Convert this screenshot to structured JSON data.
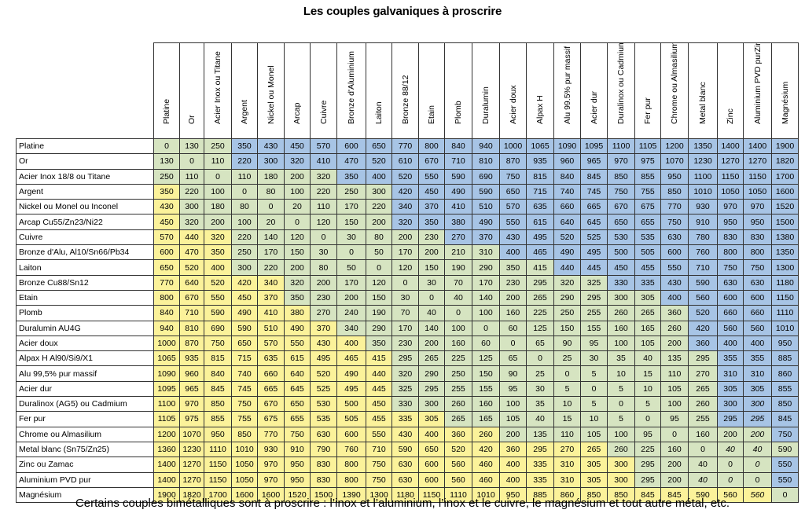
{
  "title": "Les couples galvaniques à proscrire",
  "caption": "Certains couples bimétalliques sont à proscrire : l’inox et l’aluminium, l’inox et le cuivre, le magnésium et tout autre métal, etc.",
  "colors": {
    "green": "#d6e4c1",
    "yellow": "#fbf29a",
    "blue": "#a7c4e5"
  },
  "columns": [
    "Platine",
    "Or",
    "Acier Inox ou Titane",
    "Argent",
    "Nickel ou Monel",
    "Arcap",
    "Cuivre",
    "Bronze d'Aluminium",
    "Laiton",
    "Bronze 88/12",
    "Etain",
    "Plomb",
    "Duralumin",
    "Acier doux",
    "Alpax H",
    "Alu 99.5% pur massif",
    "Acier dur",
    "Duralinox ou Cadmium",
    "Fer pur",
    "Chrome ou Almasilium",
    "Metal blanc",
    "Zinc",
    "Aluminium PVD purZinc",
    "Magnésium"
  ],
  "rows": [
    {
      "label": "Platine",
      "values": [
        "0",
        "130",
        "250",
        "350",
        "430",
        "450",
        "570",
        "600",
        "650",
        "770",
        "800",
        "840",
        "940",
        "1000",
        "1065",
        "1090",
        "1095",
        "1100",
        "1105",
        "1200",
        "1350",
        "1400",
        "1400",
        "1900"
      ]
    },
    {
      "label": "Or",
      "values": [
        "130",
        "0",
        "110",
        "220",
        "300",
        "320",
        "410",
        "470",
        "520",
        "610",
        "670",
        "710",
        "810",
        "870",
        "935",
        "960",
        "965",
        "970",
        "975",
        "1070",
        "1230",
        "1270",
        "1270",
        "1820"
      ]
    },
    {
      "label": "Acier Inox 18/8 ou Titane",
      "values": [
        "250",
        "110",
        "0",
        "110",
        "180",
        "200",
        "320",
        "350",
        "400",
        "520",
        "550",
        "590",
        "690",
        "750",
        "815",
        "840",
        "845",
        "850",
        "855",
        "950",
        "1100",
        "1150",
        "1150",
        "1700"
      ]
    },
    {
      "label": "Argent",
      "values": [
        "350",
        "220",
        "100",
        "0",
        "80",
        "100",
        "220",
        "250",
        "300",
        "420",
        "450",
        "490",
        "590",
        "650",
        "715",
        "740",
        "745",
        "750",
        "755",
        "850",
        "1010",
        "1050",
        "1050",
        "1600"
      ]
    },
    {
      "label": "Nickel ou Monel ou Inconel",
      "values": [
        "430",
        "300",
        "180",
        "80",
        "0",
        "20",
        "110",
        "170",
        "220",
        "340",
        "370",
        "410",
        "510",
        "570",
        "635",
        "660",
        "665",
        "670",
        "675",
        "770",
        "930",
        "970",
        "970",
        "1520"
      ]
    },
    {
      "label": "Arcap Cu55/Zn23/Ni22",
      "values": [
        "450",
        "320",
        "200",
        "100",
        "20",
        "0",
        "120",
        "150",
        "200",
        "320",
        "350",
        "380",
        "490",
        "550",
        "615",
        "640",
        "645",
        "650",
        "655",
        "750",
        "910",
        "950",
        "950",
        "1500"
      ]
    },
    {
      "label": "Cuivre",
      "values": [
        "570",
        "440",
        "320",
        "220",
        "140",
        "120",
        "0",
        "30",
        "80",
        "200",
        "230",
        "270",
        "370",
        "430",
        "495",
        "520",
        "525",
        "530",
        "535",
        "630",
        "780",
        "830",
        "830",
        "1380"
      ]
    },
    {
      "label": "Bronze d'Alu, Al10/Sn66/Pb34",
      "values": [
        "600",
        "470",
        "350",
        "250",
        "170",
        "150",
        "30",
        "0",
        "50",
        "170",
        "200",
        "210",
        "310",
        "400",
        "465",
        "490",
        "495",
        "500",
        "505",
        "600",
        "760",
        "800",
        "800",
        "1350"
      ]
    },
    {
      "label": "Laiton",
      "values": [
        "650",
        "520",
        "400",
        "300",
        "220",
        "200",
        "80",
        "50",
        "0",
        "120",
        "150",
        "190",
        "290",
        "350",
        "415",
        "440",
        "445",
        "450",
        "455",
        "550",
        "710",
        "750",
        "750",
        "1300"
      ]
    },
    {
      "label": "Bronze Cu88/Sn12",
      "values": [
        "770",
        "640",
        "520",
        "420",
        "340",
        "320",
        "200",
        "170",
        "120",
        "0",
        "30",
        "70",
        "170",
        "230",
        "295",
        "320",
        "325",
        "330",
        "335",
        "430",
        "590",
        "630",
        "630",
        "1180"
      ]
    },
    {
      "label": "Etain",
      "values": [
        "800",
        "670",
        "550",
        "450",
        "370",
        "350",
        "230",
        "200",
        "150",
        "30",
        "0",
        "40",
        "140",
        "200",
        "265",
        "290",
        "295",
        "300",
        "305",
        "400",
        "560",
        "600",
        "600",
        "1150"
      ]
    },
    {
      "label": "Plomb",
      "values": [
        "840",
        "710",
        "590",
        "490",
        "410",
        "380",
        "270",
        "240",
        "190",
        "70",
        "40",
        "0",
        "100",
        "160",
        "225",
        "250",
        "255",
        "260",
        "265",
        "360",
        "520",
        "660",
        "660",
        "1110"
      ]
    },
    {
      "label": "Duralumin AU4G",
      "values": [
        "940",
        "810",
        "690",
        "590",
        "510",
        "490",
        "370",
        "340",
        "290",
        "170",
        "140",
        "100",
        "0",
        "60",
        "125",
        "150",
        "155",
        "160",
        "165",
        "260",
        "420",
        "560",
        "560",
        "1010"
      ]
    },
    {
      "label": "Acier doux",
      "values": [
        "1000",
        "870",
        "750",
        "650",
        "570",
        "550",
        "430",
        "400",
        "350",
        "230",
        "200",
        "160",
        "60",
        "0",
        "65",
        "90",
        "95",
        "100",
        "105",
        "200",
        "360",
        "400",
        "400",
        "950"
      ]
    },
    {
      "label": "Alpax H Al90/Si9/X1",
      "values": [
        "1065",
        "935",
        "815",
        "715",
        "635",
        "615",
        "495",
        "465",
        "415",
        "295",
        "265",
        "225",
        "125",
        "65",
        "0",
        "25",
        "30",
        "35",
        "40",
        "135",
        "295",
        "355",
        "355",
        "885"
      ]
    },
    {
      "label": "Alu 99,5% pur massif",
      "values": [
        "1090",
        "960",
        "840",
        "740",
        "660",
        "640",
        "520",
        "490",
        "440",
        "320",
        "290",
        "250",
        "150",
        "90",
        "25",
        "0",
        "5",
        "10",
        "15",
        "110",
        "270",
        "310",
        "310",
        "860"
      ]
    },
    {
      "label": "Acier dur",
      "values": [
        "1095",
        "965",
        "845",
        "745",
        "665",
        "645",
        "525",
        "495",
        "445",
        "325",
        "295",
        "255",
        "155",
        "95",
        "30",
        "5",
        "0",
        "5",
        "10",
        "105",
        "265",
        "305",
        "305",
        "855"
      ]
    },
    {
      "label": "Duralinox (AG5) ou Cadmium",
      "values": [
        "1100",
        "970",
        "850",
        "750",
        "670",
        "650",
        "530",
        "500",
        "450",
        "330",
        "300",
        "260",
        "160",
        "100",
        "35",
        "10",
        "5",
        "0",
        "5",
        "100",
        "260",
        "300",
        "300",
        "850"
      ]
    },
    {
      "label": "Fer pur",
      "values": [
        "1105",
        "975",
        "855",
        "755",
        "675",
        "655",
        "535",
        "505",
        "455",
        "335",
        "305",
        "265",
        "165",
        "105",
        "40",
        "15",
        "10",
        "5",
        "0",
        "95",
        "255",
        "295",
        "295",
        "845"
      ]
    },
    {
      "label": "Chrome ou Almasilium",
      "values": [
        "1200",
        "1070",
        "950",
        "850",
        "770",
        "750",
        "630",
        "600",
        "550",
        "430",
        "400",
        "360",
        "260",
        "200",
        "135",
        "110",
        "105",
        "100",
        "95",
        "0",
        "160",
        "200",
        "200",
        "750"
      ]
    },
    {
      "label": "Metal blanc (Sn75/Zn25)",
      "values": [
        "1360",
        "1230",
        "1110",
        "1010",
        "930",
        "910",
        "790",
        "760",
        "710",
        "590",
        "650",
        "520",
        "420",
        "360",
        "295",
        "270",
        "265",
        "260",
        "225",
        "160",
        "0",
        "40",
        "40",
        "590"
      ]
    },
    {
      "label": "Zinc ou Zamac",
      "values": [
        "1400",
        "1270",
        "1150",
        "1050",
        "970",
        "950",
        "830",
        "800",
        "750",
        "630",
        "600",
        "560",
        "460",
        "400",
        "335",
        "310",
        "305",
        "300",
        "295",
        "200",
        "40",
        "0",
        "0",
        "550"
      ]
    },
    {
      "label": "Aluminium PVD pur",
      "values": [
        "1400",
        "1270",
        "1150",
        "1050",
        "970",
        "950",
        "830",
        "800",
        "750",
        "630",
        "600",
        "560",
        "460",
        "400",
        "335",
        "310",
        "305",
        "300",
        "295",
        "200",
        "40",
        "0",
        "0",
        "550"
      ]
    },
    {
      "label": "Magnésium",
      "values": [
        "1900",
        "1820",
        "1700",
        "1600",
        "1600",
        "1520",
        "1500",
        "1390",
        "1300",
        "1180",
        "1150",
        "1110",
        "1010",
        "950",
        "885",
        "860",
        "850",
        "850",
        "845",
        "845",
        "590",
        "560",
        "560",
        "0"
      ]
    }
  ]
}
